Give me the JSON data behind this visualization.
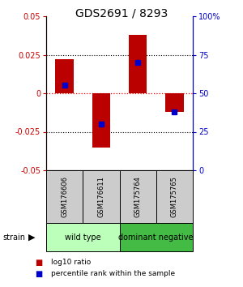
{
  "title": "GDS2691 / 8293",
  "samples": [
    "GSM176606",
    "GSM176611",
    "GSM175764",
    "GSM175765"
  ],
  "log10_ratio": [
    0.022,
    -0.035,
    0.038,
    -0.012
  ],
  "percentile_rank": [
    55,
    30,
    70,
    38
  ],
  "ylim_left": [
    -0.05,
    0.05
  ],
  "ylim_right": [
    0,
    100
  ],
  "yticks_left": [
    -0.05,
    -0.025,
    0,
    0.025,
    0.05
  ],
  "yticks_right": [
    0,
    25,
    50,
    75,
    100
  ],
  "ytick_labels_left": [
    "-0.05",
    "-0.025",
    "0",
    "0.025",
    "0.05"
  ],
  "ytick_labels_right": [
    "0",
    "25",
    "50",
    "75",
    "100%"
  ],
  "hlines_dotted": [
    -0.025,
    0.025
  ],
  "hline_red": 0,
  "bar_color": "#bb0000",
  "blue_color": "#0000cc",
  "bar_width": 0.5,
  "blue_marker_size": 5,
  "strain_groups": [
    {
      "label": "wild type",
      "color": "#bbffbb"
    },
    {
      "label": "dominant negative",
      "color": "#44bb44"
    }
  ],
  "strain_label": "strain",
  "legend_red_label": "log10 ratio",
  "legend_blue_label": "percentile rank within the sample",
  "sample_box_color": "#cccccc",
  "title_fontsize": 10,
  "axis_left_color": "#cc0000",
  "axis_right_color": "#0000cc",
  "background_color": "#ffffff"
}
